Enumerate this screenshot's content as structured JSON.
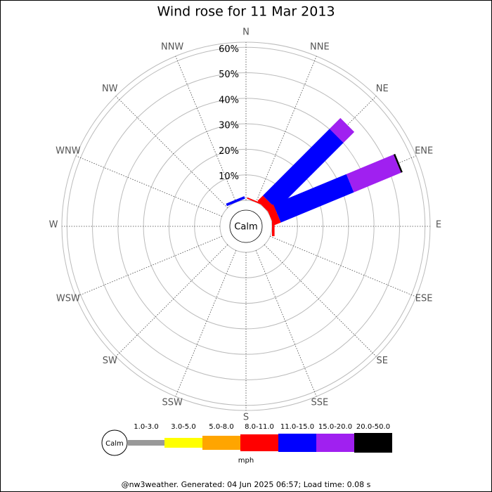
{
  "chart_data": {
    "type": "windrose",
    "title": "Wind rose for 11 Mar 2013",
    "directions": [
      "N",
      "NNE",
      "NE",
      "ENE",
      "E",
      "ESE",
      "SE",
      "SSE",
      "S",
      "SSW",
      "SW",
      "WSW",
      "W",
      "WNW",
      "NW",
      "NNW"
    ],
    "calm_label": "Calm",
    "units": "mph",
    "footer": "@nw3weather. Generated: 04 Jun 2025 06:57; Load time: 0.08 s",
    "ylim": [
      0,
      62
    ],
    "yticks": [
      {
        "value": 10,
        "label": "10%"
      },
      {
        "value": 20,
        "label": "20%"
      },
      {
        "value": 30,
        "label": "30%"
      },
      {
        "value": 40,
        "label": "40%"
      },
      {
        "value": 50,
        "label": "50%"
      },
      {
        "value": 60,
        "label": "60%"
      }
    ],
    "series": [
      {
        "name": "1.0-3.0",
        "color": "#999999",
        "values": [
          0,
          0,
          0,
          0,
          0,
          0,
          0,
          0,
          0,
          0,
          0,
          0,
          0,
          0,
          0,
          0
        ]
      },
      {
        "name": "3.0-5.0",
        "color": "#ffff00",
        "values": [
          0,
          0,
          0,
          0,
          0,
          0,
          0,
          0,
          0,
          0,
          0,
          0,
          0,
          0,
          0,
          0
        ]
      },
      {
        "name": "5.0-8.0",
        "color": "#ffa500",
        "values": [
          0,
          0,
          0,
          0,
          0,
          0,
          0,
          0,
          0,
          0,
          0,
          0,
          0,
          0,
          0,
          0
        ]
      },
      {
        "name": "8.0-11.0",
        "color": "#ff0000",
        "values": [
          0,
          0.5,
          3,
          3,
          1,
          0,
          0,
          0,
          0,
          0,
          0,
          0,
          0,
          0,
          0,
          0
        ]
      },
      {
        "name": "11.0-15.0",
        "color": "#0000ff",
        "values": [
          0,
          0,
          37,
          31,
          0,
          0,
          0,
          0,
          0,
          0,
          0,
          0,
          0,
          0,
          0,
          1
        ]
      },
      {
        "name": "15.0-20.0",
        "color": "#a020f0",
        "values": [
          0,
          0,
          6,
          20,
          0,
          0,
          0,
          0,
          0,
          0,
          0,
          0,
          0,
          0,
          0,
          0
        ]
      },
      {
        "name": "20.0-50.0",
        "color": "#000000",
        "values": [
          0,
          0,
          0,
          0.7,
          0,
          0,
          0,
          0,
          0,
          0,
          0,
          0,
          0,
          0,
          0,
          0
        ]
      }
    ]
  }
}
